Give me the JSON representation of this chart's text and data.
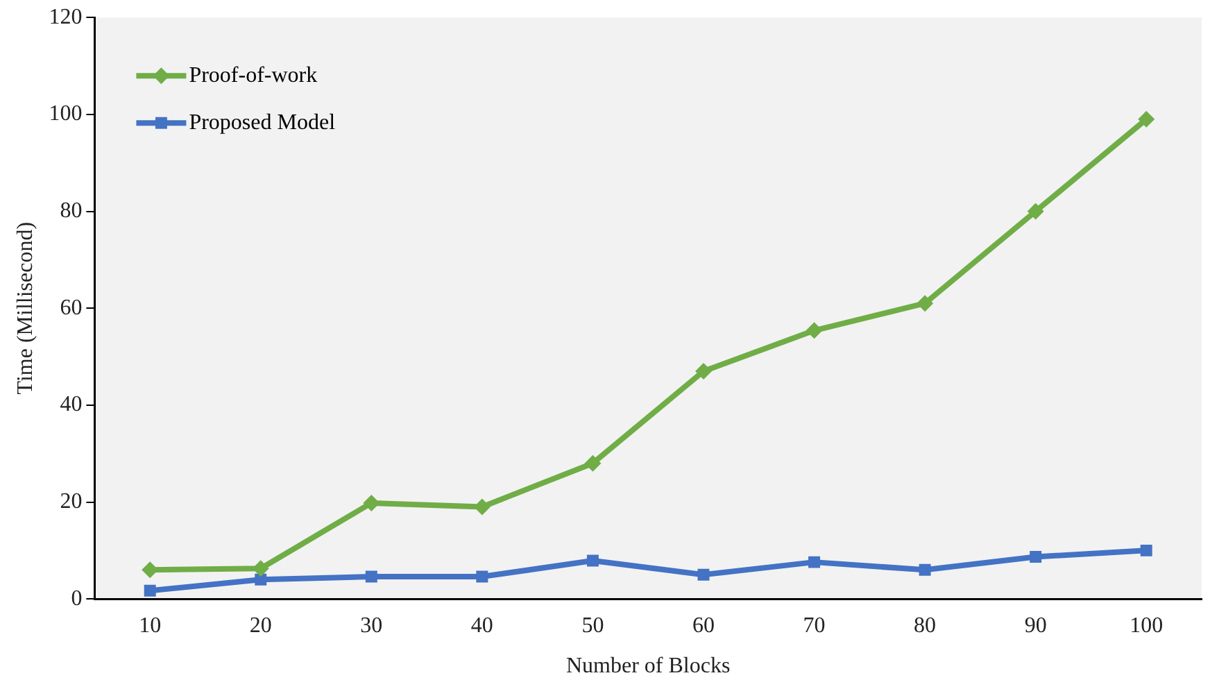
{
  "chart_data": {
    "type": "line",
    "xlabel": "Number of Blocks",
    "ylabel": "Time (Millisecond)",
    "categories": [
      "10",
      "20",
      "30",
      "40",
      "50",
      "60",
      "70",
      "80",
      "90",
      "100"
    ],
    "series": [
      {
        "name": "Proof-of-work",
        "color": "#70ad47",
        "marker": "diamond",
        "values": [
          6,
          6.3,
          19.8,
          19,
          28,
          47,
          55.4,
          61,
          80,
          99
        ]
      },
      {
        "name": "Proposed Model",
        "color": "#4472c4",
        "marker": "square",
        "values": [
          1.7,
          4,
          4.6,
          4.6,
          7.9,
          5,
          7.6,
          6,
          8.7,
          10
        ]
      }
    ],
    "ylim": [
      0,
      120
    ],
    "yticks": [
      0,
      20,
      40,
      60,
      80,
      100,
      120
    ],
    "grid": false,
    "legend": "top left",
    "line_style": "solid"
  }
}
